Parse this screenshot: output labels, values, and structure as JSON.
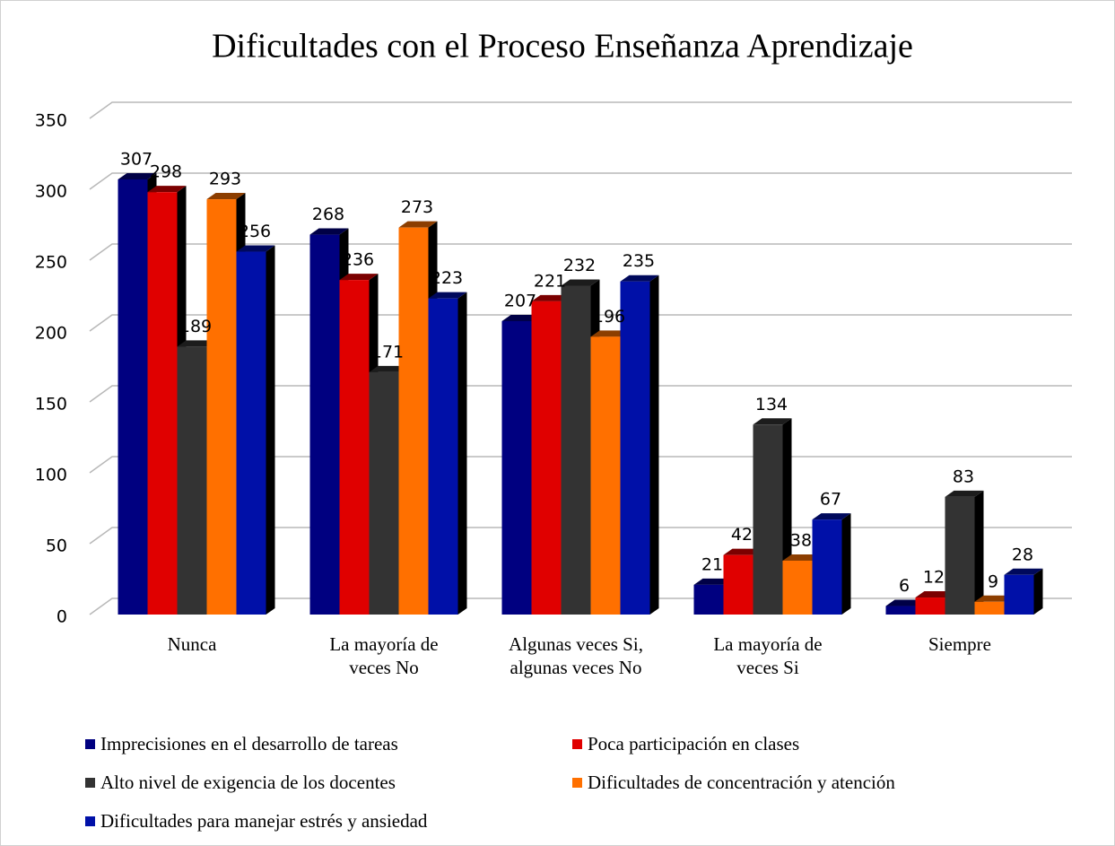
{
  "chart_data": {
    "type": "bar3d",
    "title": "Dificultades con el Proceso Enseñanza Aprendizaje",
    "categories": [
      "Nunca",
      "La mayoría de veces No",
      "Algunas veces Si, algunas veces No",
      "La mayoría de veces Si",
      "Siempre"
    ],
    "series": [
      {
        "name": "Imprecisiones en el desarrollo de tareas",
        "color": "#000080",
        "values": [
          307,
          268,
          207,
          21,
          6
        ]
      },
      {
        "name": "Poca participación en clases",
        "color": "#e00000",
        "values": [
          298,
          236,
          221,
          42,
          12
        ]
      },
      {
        "name": "Alto nivel de exigencia de los docentes",
        "color": "#333333",
        "values": [
          189,
          171,
          232,
          134,
          83
        ]
      },
      {
        "name": "Dificultades de concentración y atención",
        "color": "#ff7000",
        "values": [
          293,
          273,
          196,
          38,
          9
        ]
      },
      {
        "name": "Dificultades para manejar estrés y ansiedad",
        "color": "#0010a8",
        "values": [
          256,
          223,
          235,
          67,
          28
        ]
      }
    ],
    "ylim": [
      0,
      350
    ],
    "yticks": [
      0,
      50,
      100,
      150,
      200,
      250,
      300,
      350
    ],
    "grid": true,
    "legend": "bottom"
  }
}
